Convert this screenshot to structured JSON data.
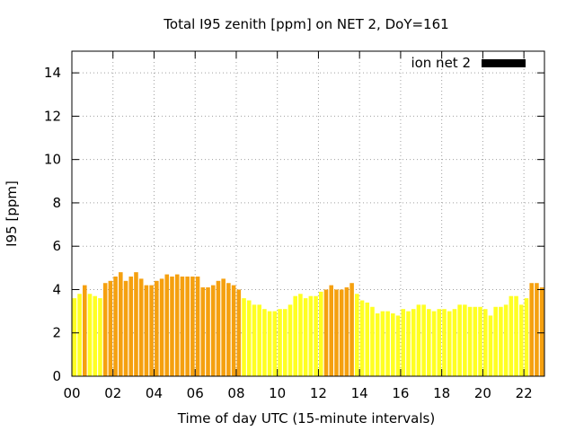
{
  "chart_data": {
    "type": "bar",
    "title": "Total I95 zenith [ppm] on NET 2, DoY=161",
    "xlabel": "Time of day UTC (15-minute intervals)",
    "ylabel": "I95 [ppm]",
    "xlim": [
      0,
      23
    ],
    "ylim": [
      0,
      15
    ],
    "x_ticks": [
      "00",
      "02",
      "04",
      "06",
      "08",
      "10",
      "12",
      "14",
      "16",
      "18",
      "20",
      "22"
    ],
    "y_ticks": [
      "0",
      "2",
      "4",
      "6",
      "8",
      "10",
      "12",
      "14"
    ],
    "grid": true,
    "legend": {
      "position": "top-right",
      "label": "ion net 2",
      "color": "#000000"
    },
    "bar_width_hours": 0.2,
    "colors": {
      "low": "#ffff22",
      "high": "#f5a00f"
    },
    "series": [
      {
        "name": "ion net 2",
        "x": [
          0.125,
          0.375,
          0.625,
          0.875,
          1.125,
          1.375,
          1.625,
          1.875,
          2.125,
          2.375,
          2.625,
          2.875,
          3.125,
          3.375,
          3.625,
          3.875,
          4.125,
          4.375,
          4.625,
          4.875,
          5.125,
          5.375,
          5.625,
          5.875,
          6.125,
          6.375,
          6.625,
          6.875,
          7.125,
          7.375,
          7.625,
          7.875,
          8.125,
          8.375,
          8.625,
          8.875,
          9.125,
          9.375,
          9.625,
          9.875,
          10.125,
          10.375,
          10.625,
          10.875,
          11.125,
          11.375,
          11.625,
          11.875,
          12.125,
          12.375,
          12.625,
          12.875,
          13.125,
          13.375,
          13.625,
          13.875,
          14.125,
          14.375,
          14.625,
          14.875,
          15.125,
          15.375,
          15.625,
          15.875,
          16.125,
          16.375,
          16.625,
          16.875,
          17.125,
          17.375,
          17.625,
          17.875,
          18.125,
          18.375,
          18.625,
          18.875,
          19.125,
          19.375,
          19.625,
          19.875,
          20.125,
          20.375,
          20.625,
          20.875,
          21.125,
          21.375,
          21.625,
          21.875,
          22.125,
          22.375,
          22.625,
          22.875
        ],
        "values": [
          3.6,
          3.8,
          4.2,
          3.8,
          3.7,
          3.6,
          4.3,
          4.4,
          4.6,
          4.8,
          4.4,
          4.6,
          4.8,
          4.5,
          4.2,
          4.2,
          4.4,
          4.5,
          4.7,
          4.6,
          4.7,
          4.6,
          4.6,
          4.6,
          4.6,
          4.1,
          4.1,
          4.2,
          4.4,
          4.5,
          4.3,
          4.2,
          4.0,
          3.6,
          3.5,
          3.3,
          3.3,
          3.1,
          3.0,
          3.0,
          3.1,
          3.1,
          3.3,
          3.7,
          3.8,
          3.6,
          3.7,
          3.7,
          3.9,
          4.0,
          4.2,
          4.0,
          4.0,
          4.1,
          4.3,
          3.8,
          3.5,
          3.4,
          3.2,
          2.9,
          3.0,
          3.0,
          2.9,
          2.8,
          3.1,
          3.0,
          3.1,
          3.3,
          3.3,
          3.1,
          3.0,
          3.1,
          3.1,
          3.0,
          3.1,
          3.3,
          3.3,
          3.2,
          3.2,
          3.2,
          3.1,
          2.8,
          3.2,
          3.2,
          3.3,
          3.7,
          3.7,
          3.3,
          3.6,
          4.3,
          4.3,
          4.1
        ]
      }
    ]
  }
}
